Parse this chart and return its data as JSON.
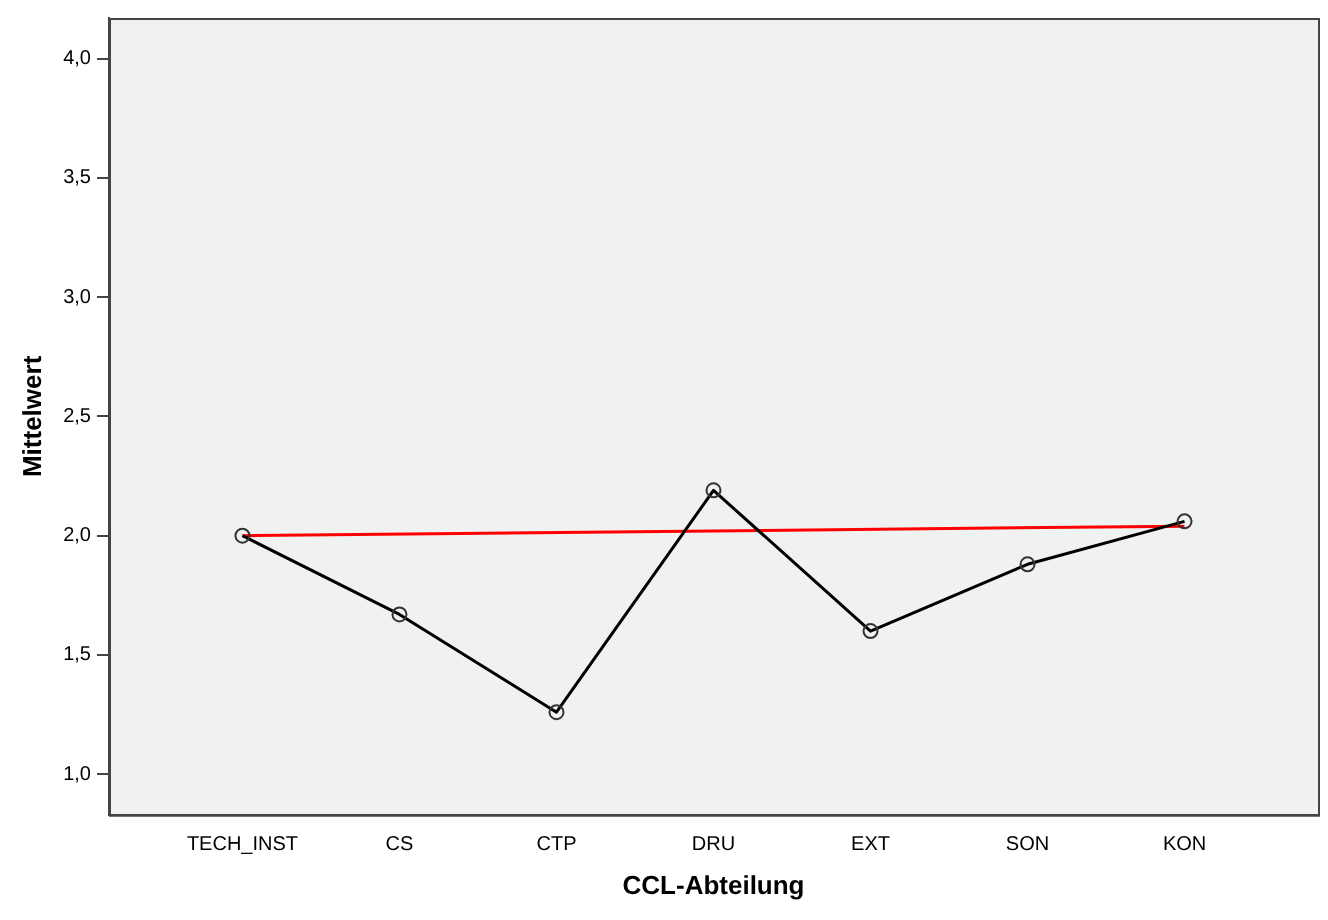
{
  "chart_data": {
    "type": "line",
    "xlabel": "CCL-Abteilung",
    "ylabel": "Mittelwert",
    "categories": [
      "TECH_INST",
      "CS",
      "CTP",
      "DRU",
      "EXT",
      "SON",
      "KON"
    ],
    "series": [
      {
        "color": "#000000",
        "marker": "circle",
        "values": [
          2.0,
          1.67,
          1.26,
          2.19,
          1.6,
          1.88,
          2.06
        ]
      },
      {
        "color": "#ff0000",
        "values": [
          2.0,
          null,
          null,
          null,
          null,
          null,
          2.04
        ]
      }
    ],
    "ylim": [
      0.83,
      4.17
    ],
    "yticks": [
      {
        "value": 1,
        "label": "1,0"
      },
      {
        "value": 1.5,
        "label": "1,5"
      },
      {
        "value": 2,
        "label": "2,0"
      },
      {
        "value": 2.5,
        "label": "2,5"
      },
      {
        "value": 3,
        "label": "3,0"
      },
      {
        "value": 3.5,
        "label": "3,5"
      },
      {
        "value": 4,
        "label": "4,0"
      }
    ],
    "grid": false,
    "legend": false
  }
}
